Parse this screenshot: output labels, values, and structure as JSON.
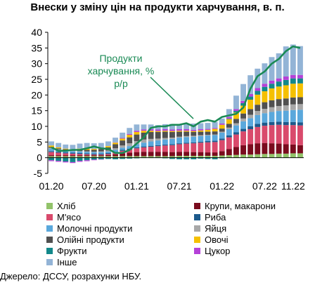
{
  "title": "Внески у зміну цін на продукти харчування, в. п.",
  "source": "Джерело: ДССУ, розрахунки НБУ.",
  "chart_data": {
    "type": "bar",
    "stacked": true,
    "ylim": [
      -5,
      40
    ],
    "yticks": [
      -5,
      0,
      5,
      10,
      15,
      20,
      25,
      30,
      35,
      40
    ],
    "xtick_labels": [
      "01.20",
      "07.20",
      "01.21",
      "07.21",
      "01.22",
      "07.22",
      "11.22"
    ],
    "xtick_index": [
      0,
      6,
      12,
      18,
      24,
      30,
      34
    ],
    "grid": false,
    "legend_position": "bottom",
    "series": [
      {
        "name": "Хліб",
        "color": "#92c36a",
        "values": [
          0.5,
          0.5,
          0.5,
          0.5,
          0.5,
          0.5,
          0.5,
          0.5,
          0.5,
          0.5,
          0.5,
          0.5,
          0.5,
          0.5,
          0.5,
          0.5,
          0.5,
          0.5,
          0.6,
          0.6,
          0.6,
          0.6,
          0.6,
          0.6,
          0.7,
          0.8,
          0.9,
          1.0,
          1.0,
          1.1,
          1.2,
          1.2,
          1.3,
          1.3,
          1.4,
          1.4
        ]
      },
      {
        "name": "Крупи, макарони",
        "color": "#7a0b1e",
        "values": [
          0.3,
          0.3,
          0.3,
          0.3,
          0.3,
          0.3,
          0.3,
          0.3,
          0.4,
          0.6,
          0.9,
          1.1,
          1.3,
          1.4,
          1.4,
          1.4,
          1.4,
          1.3,
          1.3,
          1.3,
          1.2,
          1.2,
          1.1,
          1.1,
          1.4,
          2.0,
          2.5,
          3.0,
          3.3,
          3.5,
          3.5,
          3.4,
          3.2,
          3.0,
          2.8,
          2.6
        ]
      },
      {
        "name": "М'ясо",
        "color": "#d94a6c",
        "values": [
          1.0,
          0.8,
          0.6,
          0.5,
          0.4,
          0.3,
          0.2,
          0.2,
          0.3,
          0.5,
          0.8,
          1.0,
          1.2,
          1.4,
          1.6,
          1.8,
          2.0,
          2.2,
          2.4,
          2.6,
          2.8,
          3.0,
          3.2,
          3.3,
          3.5,
          3.7,
          4.0,
          4.4,
          4.8,
          5.2,
          5.5,
          5.8,
          6.0,
          6.1,
          6.2,
          6.3
        ]
      },
      {
        "name": "Риба",
        "color": "#1c5a8c",
        "values": [
          0.3,
          0.3,
          0.3,
          0.3,
          0.3,
          0.3,
          0.3,
          0.3,
          0.3,
          0.3,
          0.3,
          0.3,
          0.3,
          0.3,
          0.3,
          0.3,
          0.3,
          0.3,
          0.3,
          0.3,
          0.3,
          0.3,
          0.4,
          0.4,
          0.5,
          0.6,
          0.7,
          0.8,
          0.9,
          1.0,
          1.0,
          1.0,
          1.0,
          1.0,
          1.0,
          1.0
        ]
      },
      {
        "name": "Молочні продукти",
        "color": "#5aa8dc",
        "values": [
          0.8,
          0.7,
          0.6,
          0.5,
          0.5,
          0.5,
          0.5,
          0.5,
          0.5,
          0.6,
          0.7,
          0.8,
          1.0,
          1.2,
          1.4,
          1.5,
          1.6,
          1.7,
          1.8,
          1.8,
          1.8,
          1.8,
          1.8,
          1.8,
          1.9,
          2.0,
          2.2,
          2.4,
          2.6,
          2.8,
          3.0,
          3.2,
          3.4,
          3.6,
          3.8,
          4.0
        ]
      },
      {
        "name": "Яйця",
        "color": "#a8a8a8",
        "values": [
          0.2,
          0.1,
          0.1,
          0.1,
          0.1,
          0.1,
          0.1,
          0.2,
          0.3,
          0.5,
          0.7,
          0.9,
          1.0,
          1.0,
          0.8,
          0.6,
          0.5,
          0.4,
          0.3,
          0.3,
          0.3,
          0.3,
          0.2,
          0.2,
          0.3,
          0.5,
          0.7,
          0.9,
          1.1,
          1.3,
          1.4,
          1.5,
          1.6,
          1.7,
          1.8,
          1.8
        ]
      },
      {
        "name": "Олійні продукти",
        "color": "#505050",
        "values": [
          0.3,
          0.3,
          0.3,
          0.3,
          0.4,
          0.5,
          0.6,
          0.8,
          1.0,
          1.3,
          1.6,
          1.9,
          2.1,
          2.2,
          2.2,
          2.1,
          2.0,
          1.8,
          1.6,
          1.4,
          1.2,
          1.1,
          1.0,
          1.0,
          1.0,
          1.2,
          1.4,
          1.6,
          1.8,
          2.0,
          2.1,
          2.2,
          2.2,
          2.2,
          2.2,
          2.2
        ]
      },
      {
        "name": "Овочі",
        "color": "#f5c000",
        "values": [
          0.5,
          0.3,
          0.2,
          0.2,
          0.4,
          0.4,
          0.3,
          0.3,
          0.4,
          0.5,
          0.6,
          0.8,
          0.8,
          0.6,
          0.4,
          0.3,
          0.3,
          0.3,
          0.3,
          0.3,
          0.3,
          0.4,
          0.6,
          0.8,
          1.2,
          1.5,
          2.0,
          2.5,
          3.0,
          3.2,
          3.5,
          3.8,
          4.0,
          4.2,
          4.4,
          4.4
        ]
      },
      {
        "name": "Фрукти",
        "color": "#12888a",
        "values": [
          -0.8,
          -1.0,
          -1.2,
          -1.4,
          -1.0,
          -0.8,
          -0.6,
          -0.5,
          -0.4,
          -0.5,
          -0.4,
          -0.3,
          -0.2,
          -0.1,
          -0.1,
          -0.1,
          -0.2,
          -0.4,
          -0.5,
          -0.5,
          -0.5,
          -0.3,
          -0.4,
          -0.5,
          -0.2,
          0.2,
          0.5,
          0.8,
          1.0,
          1.2,
          1.4,
          1.5,
          1.6,
          1.7,
          1.7,
          1.6
        ]
      },
      {
        "name": "Цукор",
        "color": "#b541d8",
        "values": [
          -0.3,
          -0.3,
          -0.3,
          -0.3,
          -0.3,
          -0.3,
          -0.2,
          -0.1,
          0.0,
          0.1,
          0.2,
          0.3,
          0.4,
          0.4,
          0.5,
          0.5,
          0.5,
          0.5,
          0.5,
          0.5,
          0.4,
          0.4,
          0.3,
          0.3,
          0.4,
          0.5,
          0.6,
          0.7,
          0.8,
          0.9,
          1.0,
          1.0,
          1.0,
          1.1,
          1.1,
          1.1
        ]
      },
      {
        "name": "Інше",
        "color": "#93b4d6",
        "values": [
          1.3,
          1.4,
          1.3,
          1.4,
          1.6,
          1.8,
          1.8,
          1.6,
          1.5,
          1.5,
          1.7,
          1.9,
          2.0,
          1.6,
          1.5,
          1.4,
          1.6,
          1.8,
          1.6,
          1.6,
          2.0,
          1.9,
          1.9,
          1.9,
          1.6,
          2.5,
          4.3,
          5.4,
          6.0,
          6.2,
          6.5,
          7.5,
          8.0,
          9.6,
          9.7,
          9.2
        ]
      }
    ],
    "line": {
      "name": "Продукти харчування, % р/р",
      "label_lines": [
        "Продукти",
        "харчування, %",
        "р/р"
      ],
      "color": "#1a8a55",
      "values": [
        3.3,
        2.2,
        2.2,
        2.5,
        2.5,
        3.0,
        3.6,
        3.0,
        2.8,
        1.5,
        1.5,
        2.5,
        4.5,
        6.5,
        9.5,
        10.0,
        10.0,
        10.5,
        10.5,
        11.0,
        10.0,
        11.5,
        12.0,
        11.5,
        13.0,
        13.5,
        14.0,
        16.0,
        22.0,
        26.0,
        27.5,
        30.0,
        31.5,
        34.0,
        35.5,
        35.0
      ]
    }
  },
  "legend": [
    {
      "label": "Хліб",
      "color": "#92c36a"
    },
    {
      "label": "Крупи, макарони",
      "color": "#7a0b1e"
    },
    {
      "label": "М'ясо",
      "color": "#d94a6c"
    },
    {
      "label": "Риба",
      "color": "#1c5a8c"
    },
    {
      "label": "Молочні продукти",
      "color": "#5aa8dc"
    },
    {
      "label": "Яйця",
      "color": "#a8a8a8"
    },
    {
      "label": "Олійні продукти",
      "color": "#505050"
    },
    {
      "label": "Овочі",
      "color": "#f5c000"
    },
    {
      "label": "Фрукти",
      "color": "#12888a"
    },
    {
      "label": "Цукор",
      "color": "#b541d8"
    },
    {
      "label": "Інше",
      "color": "#93b4d6"
    }
  ]
}
